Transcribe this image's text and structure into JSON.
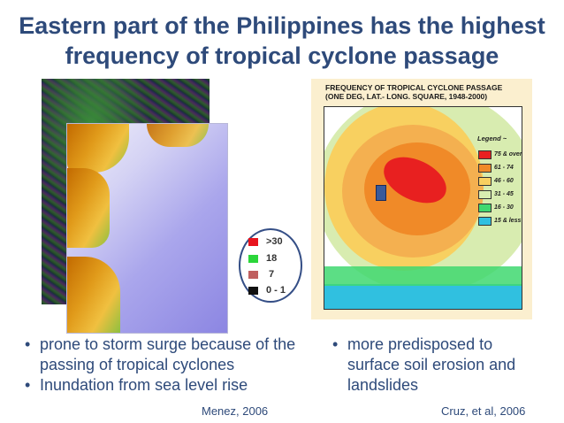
{
  "title": {
    "line1": "Eastern part of the Philippines has the highest",
    "line2": "frequency of tropical cyclone passage"
  },
  "left_legend": [
    {
      "label": ">30",
      "color": "#e8141e"
    },
    {
      "label": "18",
      "color": "#2bd63a"
    },
    {
      "label": "7",
      "color": "#c06060"
    },
    {
      "label": "0 - 1",
      "color": "#111111"
    }
  ],
  "cyclone_map": {
    "title_line1": "FREQUENCY OF TROPICAL CYCLONE PASSAGE",
    "title_line2": "(ONE DEG, LAT.- LONG. SQUARE, 1948-2000)",
    "legend_title": "Legend ~",
    "legend": [
      {
        "label": "75 & over",
        "color": "#e82020"
      },
      {
        "label": "61 - 74",
        "color": "#f08a28"
      },
      {
        "label": "46 - 60",
        "color": "#f8d060"
      },
      {
        "label": "31 - 45",
        "color": "#d8ecb0"
      },
      {
        "label": "16 - 30",
        "color": "#40d870"
      },
      {
        "label": "15 & less",
        "color": "#30c0e0"
      }
    ]
  },
  "left_bullets": [
    "prone to storm surge because of the passing of tropical cyclones",
    "Inundation from sea level rise"
  ],
  "right_bullets": [
    "more predisposed to surface soil erosion and landslides"
  ],
  "citations": {
    "left": "Menez, 2006",
    "right": "Cruz, et al, 2006"
  }
}
